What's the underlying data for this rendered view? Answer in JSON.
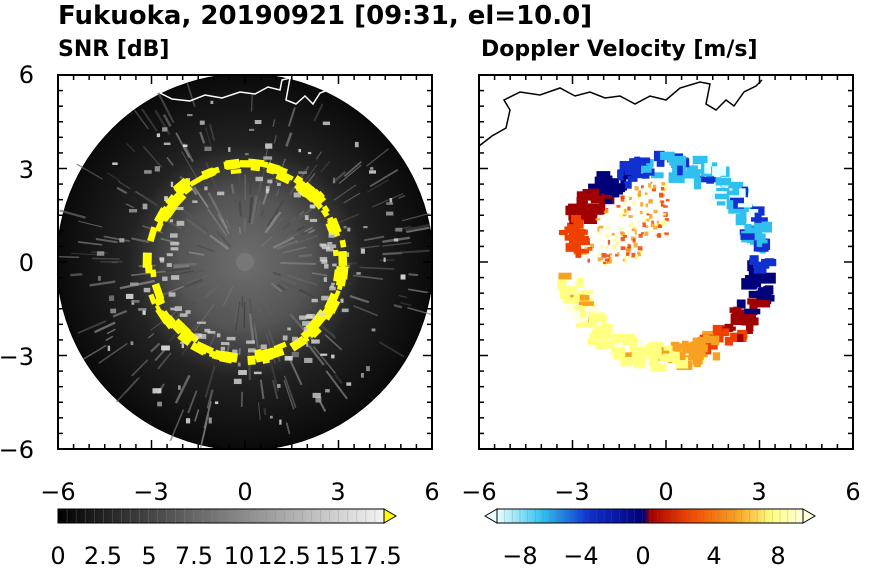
{
  "title": "Fukuoka, 20190921 [09:31, el=10.0]",
  "chart_data": [
    {
      "type": "heatmap",
      "title": "SNR [dB]",
      "projection": "polar PPI",
      "xlim": [
        -6,
        6
      ],
      "ylim": [
        -6,
        6
      ],
      "xticks": [
        "−6",
        "−3",
        "0",
        "3",
        "6"
      ],
      "yticks": [
        "−6",
        "−3",
        "0",
        "3",
        "6"
      ],
      "range_ring_radius": 6,
      "strong_echo_ring_radius": 3,
      "colorbar": {
        "min": 0,
        "max": 18,
        "extend": "max",
        "ticks": [
          "0",
          "2.5",
          "5",
          "7.5",
          "10",
          "12.5",
          "15",
          "17.5"
        ],
        "colors": [
          "#000000",
          "#ffffff",
          "#ffff00"
        ]
      }
    },
    {
      "type": "heatmap",
      "title": "Doppler Velocity [m/s]",
      "projection": "polar PPI",
      "xlim": [
        -6,
        6
      ],
      "ylim": [
        -6,
        6
      ],
      "xticks": [
        "−6",
        "−3",
        "0",
        "3",
        "6"
      ],
      "yticks": [],
      "echo_ring_radius": 3,
      "colorbar": {
        "min": -10,
        "max": 10,
        "extend": "both",
        "ticks": [
          "−8",
          "−4",
          "0",
          "4",
          "8"
        ],
        "colors": [
          "#e8ffff",
          "#30c0f0",
          "#1030d0",
          "#00007a",
          "#a00000",
          "#f04000",
          "#f8a020",
          "#ffff80",
          "#ffffe0"
        ]
      }
    }
  ]
}
